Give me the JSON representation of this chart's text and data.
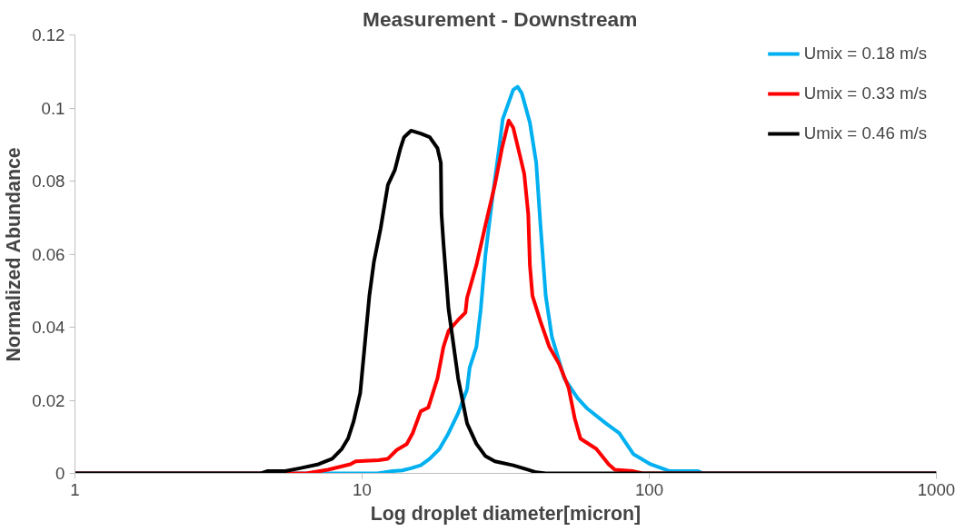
{
  "chart_data": {
    "type": "line",
    "title": "Measurement  -  Downstream",
    "xlabel": "Log droplet diameter[micron]",
    "ylabel": "Normalized Abundance",
    "log": "x",
    "xlim": [
      1,
      1000
    ],
    "xticks": [
      1,
      10,
      100,
      1000
    ],
    "ylim": [
      0,
      0.12
    ],
    "yticks": [
      0,
      0.02,
      0.04,
      0.06,
      0.08,
      0.1,
      0.12
    ],
    "grid": false,
    "legend": "top right",
    "marker": "none",
    "line_style": "solid",
    "series": [
      {
        "name": "Umix = 0.18 m/s",
        "color": "#00b0f0",
        "x": [
          1,
          11.3,
          12.8,
          13.8,
          14.8,
          16.0,
          17.2,
          18.6,
          20.0,
          21.6,
          23.2,
          23.7,
          25.0,
          25.9,
          26.9,
          28.5,
          30.0,
          30.9,
          33.6,
          34.8,
          36.0,
          38.4,
          40.4,
          41.8,
          43.6,
          45.8,
          50.6,
          56.3,
          60.5,
          70.6,
          78.6,
          88,
          101,
          118,
          148,
          154,
          1000
        ],
        "values": [
          0,
          0,
          0.0006,
          0.0008,
          0.0014,
          0.0022,
          0.004,
          0.0067,
          0.011,
          0.0165,
          0.023,
          0.029,
          0.0346,
          0.045,
          0.06,
          0.076,
          0.089,
          0.097,
          0.105,
          0.1058,
          0.104,
          0.096,
          0.085,
          0.068,
          0.0486,
          0.0374,
          0.026,
          0.0206,
          0.0179,
          0.0137,
          0.011,
          0.0053,
          0.0025,
          0.0006,
          0.0006,
          0,
          0
        ]
      },
      {
        "name": "Umix = 0.33 m/s",
        "color": "#ff0000",
        "x": [
          1,
          6.4,
          7.6,
          9.1,
          9.5,
          11.4,
          12.3,
          13.2,
          14.3,
          15.0,
          16.0,
          17.0,
          18.3,
          19.2,
          20.0,
          21.6,
          22.9,
          23.2,
          25.0,
          26.9,
          29.0,
          30.7,
          32.4,
          33.6,
          35.7,
          36.7,
          37.9,
          38.4,
          39.2,
          41.8,
          44.9,
          48.5,
          52.4,
          55.0,
          57.6,
          65.4,
          72.2,
          75.9,
          88,
          94.9,
          1000
        ],
        "values": [
          0,
          0,
          0.001,
          0.0025,
          0.0033,
          0.0036,
          0.004,
          0.0064,
          0.008,
          0.011,
          0.017,
          0.018,
          0.026,
          0.0346,
          0.039,
          0.042,
          0.044,
          0.048,
          0.057,
          0.068,
          0.079,
          0.089,
          0.0966,
          0.0946,
          0.086,
          0.082,
          0.071,
          0.057,
          0.0486,
          0.0416,
          0.0346,
          0.03,
          0.0234,
          0.0151,
          0.0095,
          0.0067,
          0.0025,
          0.001,
          0.0006,
          0,
          0
        ]
      },
      {
        "name": "Umix = 0.46 m/s",
        "color": "#000000",
        "x": [
          1,
          4.45,
          4.67,
          5.4,
          6.07,
          7.05,
          7.87,
          8.5,
          8.93,
          9.34,
          9.85,
          10.2,
          10.6,
          11.0,
          11.6,
          12.3,
          13.0,
          13.6,
          14.0,
          14.8,
          16.0,
          17.2,
          18.3,
          18.8,
          18.9,
          19.2,
          20.0,
          21.6,
          23.2,
          25.0,
          26.9,
          29.0,
          33.6,
          37.5,
          40.4,
          43.6,
          1000
        ],
        "values": [
          0,
          0,
          0.0006,
          0.0006,
          0.0014,
          0.0025,
          0.004,
          0.0067,
          0.0095,
          0.0142,
          0.022,
          0.0346,
          0.0486,
          0.058,
          0.067,
          0.079,
          0.083,
          0.089,
          0.092,
          0.0938,
          0.093,
          0.092,
          0.089,
          0.085,
          0.071,
          0.063,
          0.045,
          0.026,
          0.0137,
          0.0081,
          0.0047,
          0.0033,
          0.0022,
          0.0011,
          0.0003,
          0,
          0
        ]
      }
    ]
  }
}
